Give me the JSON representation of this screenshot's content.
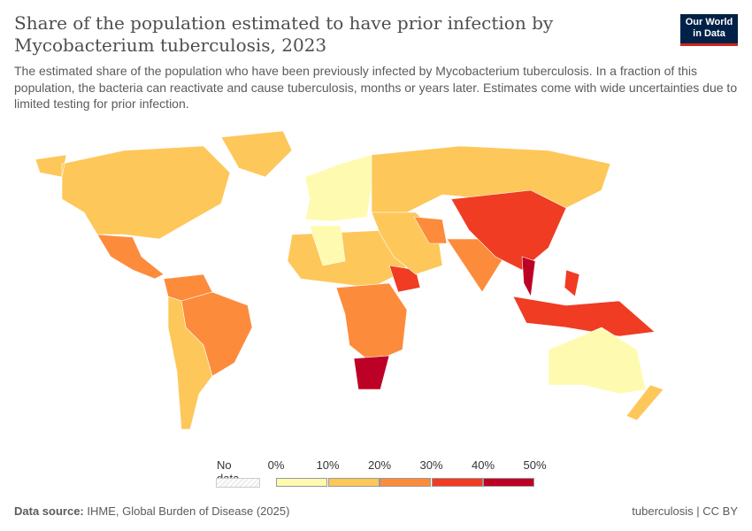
{
  "header": {
    "title": "Share of the population estimated to have prior infection by Mycobacterium tuberculosis, 2023",
    "subtitle": "The estimated share of the population who have been previously infected by Mycobacterium tuberculosis. In a fraction of this population, the bacteria can reactivate and cause tuberculosis, months or years later. Estimates come with wide uncertainties due to limited testing for prior infection.",
    "logo_line1": "Our World",
    "logo_line2": "in Data"
  },
  "legend": {
    "no_data_label": "No data",
    "ticks": [
      "0%",
      "10%",
      "20%",
      "30%",
      "40%",
      "50%"
    ],
    "bins": [
      {
        "range": "0-10%",
        "color": "#fefbb0"
      },
      {
        "range": "10-20%",
        "color": "#fec75a"
      },
      {
        "range": "20-30%",
        "color": "#fd8b3c"
      },
      {
        "range": "30-40%",
        "color": "#ef3c23"
      },
      {
        "range": "40-50%",
        "color": "#bd0026"
      }
    ],
    "no_data_color": "#eeeeee"
  },
  "chart_data": {
    "type": "choropleth",
    "year": "2023",
    "regions": [
      {
        "name": "North America",
        "bin": "10-20%"
      },
      {
        "name": "Mexico & Central America",
        "bin": "20-30%"
      },
      {
        "name": "Colombia/Venezuela",
        "bin": "20-30%"
      },
      {
        "name": "Brazil",
        "bin": "20-30%"
      },
      {
        "name": "Southern South America",
        "bin": "10-20%"
      },
      {
        "name": "Western Europe",
        "bin": "0-10%"
      },
      {
        "name": "Eastern Europe & Russia",
        "bin": "10-20%"
      },
      {
        "name": "North Africa",
        "bin": "10-20%"
      },
      {
        "name": "Algeria",
        "bin": "0-10%"
      },
      {
        "name": "Central Africa",
        "bin": "20-30%"
      },
      {
        "name": "Ethiopia",
        "bin": "30-40%"
      },
      {
        "name": "South Africa",
        "bin": "40-50%"
      },
      {
        "name": "Middle East",
        "bin": "10-20%"
      },
      {
        "name": "Iran",
        "bin": "20-30%"
      },
      {
        "name": "India",
        "bin": "20-30%"
      },
      {
        "name": "China",
        "bin": "30-40%"
      },
      {
        "name": "Vietnam",
        "bin": "40-50%"
      },
      {
        "name": "Indonesia & Philippines",
        "bin": "30-40%"
      },
      {
        "name": "Australia",
        "bin": "0-10%"
      },
      {
        "name": "New Zealand",
        "bin": "10-20%"
      },
      {
        "name": "Greenland",
        "bin": "10-20%"
      }
    ]
  },
  "footer": {
    "source_label": "Data source:",
    "source": "IHME, Global Burden of Disease (2025)",
    "license": "tuberculosis | CC BY"
  }
}
